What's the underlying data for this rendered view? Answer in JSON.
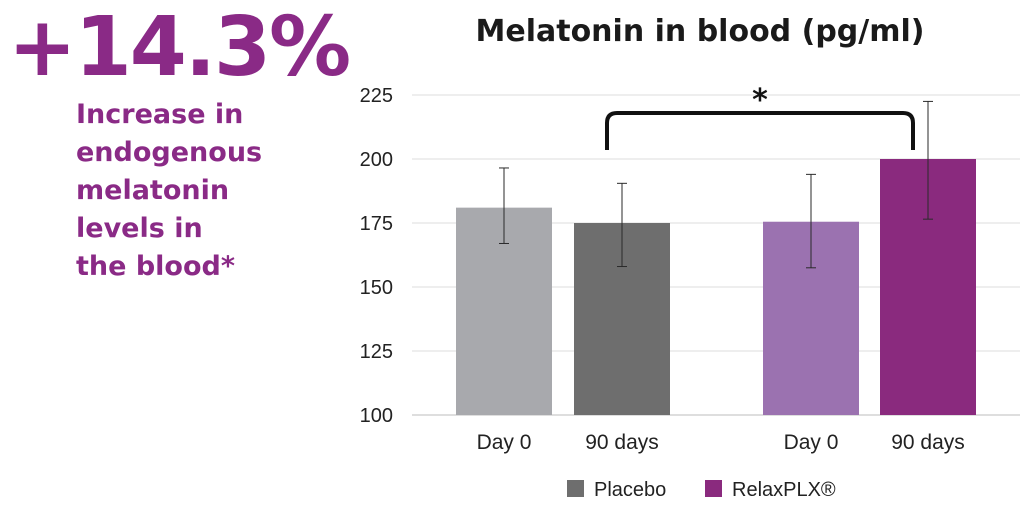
{
  "callout": {
    "stat": "+14.3%",
    "caption_lines": [
      "Increase in",
      "endogenous",
      "melatonin",
      "levels in",
      "the blood*"
    ]
  },
  "chart_data": {
    "type": "bar",
    "title": "Melatonin in blood (pg/ml)",
    "xlabel": "",
    "ylabel": "",
    "ylim": [
      100,
      225
    ],
    "yticks": [
      100,
      125,
      150,
      175,
      200,
      225
    ],
    "grid": true,
    "groups": [
      {
        "series": "Placebo",
        "bars": [
          {
            "category": "Day 0",
            "value": 181,
            "err_low": 167,
            "err_high": 196.5,
            "color": "#a8a9ad"
          },
          {
            "category": "90 days",
            "value": 175,
            "err_low": 158,
            "err_high": 190.5,
            "color": "#6e6e6e"
          }
        ]
      },
      {
        "series": "RelaxPLX®",
        "bars": [
          {
            "category": "Day 0",
            "value": 175.5,
            "err_low": 157.5,
            "err_high": 194,
            "color": "#9b72b0"
          },
          {
            "category": "90 days",
            "value": 200,
            "err_low": 176.5,
            "err_high": 222.5,
            "color": "#8a2a7e"
          }
        ]
      }
    ],
    "annotations": [
      {
        "text": "*",
        "from": "Placebo 90 days",
        "to": "RelaxPLX® 90 days"
      }
    ],
    "legend": {
      "position": "bottom",
      "items": [
        {
          "label": "Placebo",
          "color": "#6e6e6e"
        },
        {
          "label": "RelaxPLX®",
          "color": "#8a2a7e"
        }
      ]
    }
  }
}
